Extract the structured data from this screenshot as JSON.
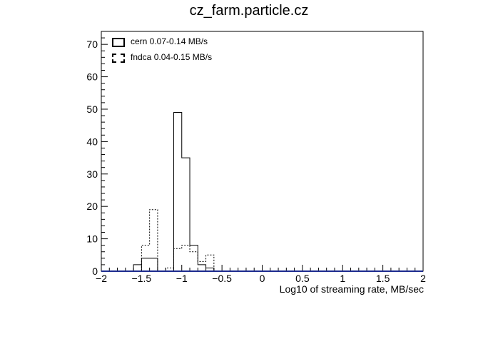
{
  "chart_data": {
    "type": "histogram",
    "title": "cz_farm.particle.cz",
    "xlabel": "Log10  of streaming rate, MB/sec",
    "ylabel": "",
    "xlim": [
      -2,
      2
    ],
    "ylim": [
      0,
      74
    ],
    "xticks": [
      "-2",
      "-1.5",
      "-1",
      "-0.5",
      "0",
      "0.5",
      "1",
      "1.5",
      "2"
    ],
    "yticks": [
      "0",
      "10",
      "20",
      "30",
      "40",
      "50",
      "60",
      "70"
    ],
    "bin_width": 0.1,
    "bin_edges": [
      -1.6,
      -1.5,
      -1.4,
      -1.3,
      -1.2,
      -1.1,
      -1.0,
      -0.9,
      -0.8,
      -0.7,
      -0.6,
      -0.5
    ],
    "series": [
      {
        "name": "cern 0.07-0.14 MB/s",
        "style": "solid",
        "values": [
          2,
          4,
          4,
          0,
          0,
          49,
          35,
          8,
          2,
          1,
          0
        ]
      },
      {
        "name": "fndca 0.04-0.15 MB/s",
        "style": "dashed",
        "values": [
          0,
          8,
          19,
          0,
          1,
          7,
          8,
          6,
          3,
          5,
          0
        ]
      }
    ],
    "legend_position": "top-left",
    "grid": false
  }
}
